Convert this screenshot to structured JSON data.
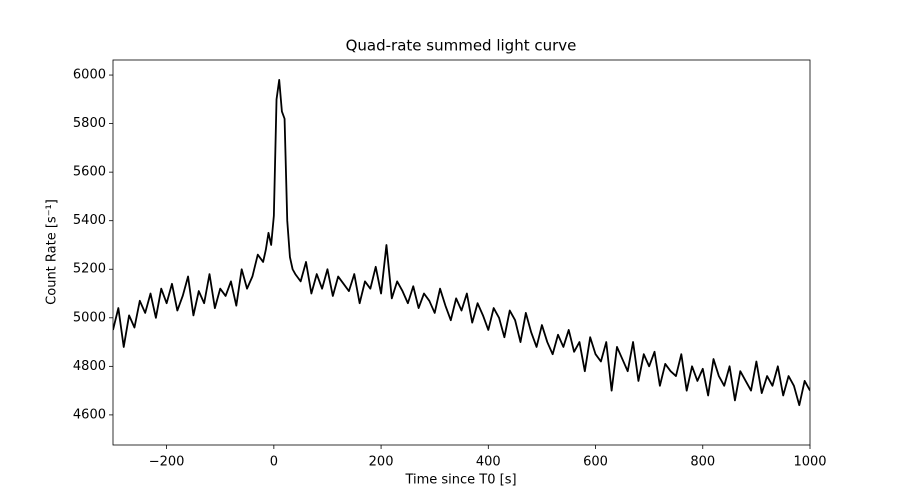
{
  "chart_data": {
    "type": "line",
    "title": "Quad-rate summed light curve",
    "xlabel": "Time since T0 [s]",
    "ylabel": "Count Rate [s⁻¹]",
    "xlim": [
      -300,
      1000
    ],
    "ylim": [
      4476,
      6062
    ],
    "xticks": [
      {
        "value": -200,
        "label": "−200"
      },
      0,
      200,
      400,
      600,
      800,
      1000
    ],
    "yticks": [
      4600,
      4800,
      5000,
      5200,
      5400,
      5600,
      5800,
      6000
    ],
    "series": [
      {
        "color": "#000000",
        "x": [
          -300,
          -290,
          -280,
          -270,
          -260,
          -250,
          -240,
          -230,
          -220,
          -210,
          -200,
          -190,
          -180,
          -170,
          -160,
          -150,
          -140,
          -130,
          -120,
          -110,
          -100,
          -90,
          -80,
          -70,
          -60,
          -50,
          -40,
          -30,
          -20,
          -15,
          -10,
          -5,
          0,
          5,
          10,
          15,
          20,
          25,
          30,
          35,
          40,
          50,
          60,
          70,
          80,
          90,
          100,
          110,
          120,
          130,
          140,
          150,
          160,
          170,
          180,
          190,
          200,
          210,
          220,
          230,
          240,
          250,
          260,
          270,
          280,
          290,
          300,
          310,
          320,
          330,
          340,
          350,
          360,
          370,
          380,
          390,
          400,
          410,
          420,
          430,
          440,
          450,
          460,
          470,
          480,
          490,
          500,
          510,
          520,
          530,
          540,
          550,
          560,
          570,
          580,
          590,
          600,
          610,
          620,
          630,
          640,
          650,
          660,
          670,
          680,
          690,
          700,
          710,
          720,
          730,
          740,
          750,
          760,
          770,
          780,
          790,
          800,
          810,
          820,
          830,
          840,
          850,
          860,
          870,
          880,
          890,
          900,
          910,
          920,
          930,
          940,
          950,
          960,
          970,
          980,
          990,
          1000
        ],
        "values": [
          4950,
          5040,
          4880,
          5010,
          4960,
          5070,
          5020,
          5100,
          5000,
          5120,
          5060,
          5140,
          5030,
          5090,
          5170,
          5010,
          5110,
          5060,
          5180,
          5040,
          5120,
          5090,
          5150,
          5050,
          5200,
          5120,
          5170,
          5260,
          5230,
          5280,
          5350,
          5300,
          5420,
          5900,
          5980,
          5850,
          5820,
          5400,
          5250,
          5200,
          5180,
          5150,
          5230,
          5100,
          5180,
          5120,
          5200,
          5090,
          5170,
          5140,
          5110,
          5180,
          5060,
          5150,
          5120,
          5210,
          5100,
          5300,
          5080,
          5150,
          5110,
          5060,
          5130,
          5040,
          5100,
          5070,
          5020,
          5120,
          5050,
          4990,
          5080,
          5030,
          5100,
          4980,
          5060,
          5010,
          4950,
          5040,
          5000,
          4920,
          5030,
          4990,
          4900,
          5020,
          4940,
          4880,
          4970,
          4900,
          4850,
          4930,
          4880,
          4950,
          4860,
          4900,
          4780,
          4920,
          4850,
          4820,
          4900,
          4700,
          4880,
          4830,
          4780,
          4900,
          4740,
          4850,
          4800,
          4860,
          4720,
          4810,
          4780,
          4760,
          4850,
          4700,
          4800,
          4740,
          4790,
          4680,
          4830,
          4760,
          4720,
          4800,
          4660,
          4780,
          4740,
          4700,
          4820,
          4690,
          4760,
          4720,
          4800,
          4680,
          4760,
          4720,
          4640,
          4740,
          4700
        ]
      }
    ]
  }
}
